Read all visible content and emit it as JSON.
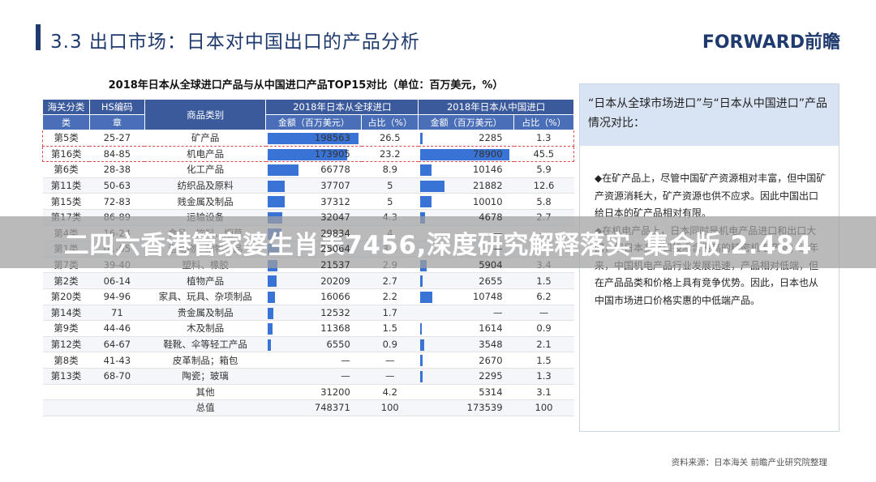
{
  "header": {
    "title": "3.3  出口市场：日本对中国出口的产品分析",
    "logo": "FORWARD前瞻"
  },
  "table": {
    "title": "2018年日本从全球进口产品与从中国进口产品TOP15对比（单位：百万美元，%）",
    "headers": {
      "customs": "海关分类",
      "customs2": "类",
      "hs": "HS编码",
      "hs2": "章",
      "category": "商品类别",
      "global_group": "2018年日本从全球进口",
      "china_group": "2018年日本从中国进口",
      "amount": "金额（百万美元）",
      "share": "占比（%）",
      "amount2": "金额（百万美元）",
      "share2": "占比（%）"
    },
    "rows": [
      {
        "cls": "第5类",
        "hs": "25-27",
        "cat": "矿产品",
        "g_amt": "198563",
        "g_share": "26.5",
        "c_amt": "2285",
        "c_share": "1.3"
      },
      {
        "cls": "第16类",
        "hs": "84-85",
        "cat": "机电产品",
        "g_amt": "173905",
        "g_share": "23.2",
        "c_amt": "78900",
        "c_share": "45.5"
      },
      {
        "cls": "第6类",
        "hs": "28-38",
        "cat": "化工产品",
        "g_amt": "66778",
        "g_share": "8.9",
        "c_amt": "10146",
        "c_share": "5.9"
      },
      {
        "cls": "第11类",
        "hs": "50-63",
        "cat": "纺织品及原料",
        "g_amt": "37707",
        "g_share": "5",
        "c_amt": "21882",
        "c_share": "12.6"
      },
      {
        "cls": "第15类",
        "hs": "72-83",
        "cat": "贱金属及制品",
        "g_amt": "37312",
        "g_share": "5",
        "c_amt": "10010",
        "c_share": "5.8"
      },
      {
        "cls": "第17类",
        "hs": "86-89",
        "cat": "运输设备",
        "g_amt": "32047",
        "g_share": "4.3",
        "c_amt": "4678",
        "c_share": "2.7"
      },
      {
        "cls": "第4类",
        "hs": "16-24",
        "cat": "食品、饮料、烟草",
        "g_amt": "29834",
        "g_share": "4",
        "c_amt": "—",
        "c_share": "—"
      },
      {
        "cls": "第1类",
        "hs": "01-05",
        "cat": "活动物；动物产品",
        "g_amt": "25064",
        "g_share": "3.4",
        "c_amt": "—",
        "c_share": "—"
      },
      {
        "cls": "第7类",
        "hs": "39-40",
        "cat": "塑料、橡胶",
        "g_amt": "21537",
        "g_share": "2.9",
        "c_amt": "5904",
        "c_share": "3.4"
      },
      {
        "cls": "第2类",
        "hs": "06-14",
        "cat": "植物产品",
        "g_amt": "20209",
        "g_share": "2.7",
        "c_amt": "2655",
        "c_share": "1.5"
      },
      {
        "cls": "第20类",
        "hs": "94-96",
        "cat": "家具、玩具、杂项制品",
        "g_amt": "16066",
        "g_share": "2.2",
        "c_amt": "10748",
        "c_share": "6.2"
      },
      {
        "cls": "第14类",
        "hs": "71",
        "cat": "贵金属及制品",
        "g_amt": "12532",
        "g_share": "1.7",
        "c_amt": "—",
        "c_share": "—"
      },
      {
        "cls": "第9类",
        "hs": "44-46",
        "cat": "木及制品",
        "g_amt": "11368",
        "g_share": "1.5",
        "c_amt": "1614",
        "c_share": "0.9"
      },
      {
        "cls": "第12类",
        "hs": "64-67",
        "cat": "鞋靴、伞等轻工产品",
        "g_amt": "6550",
        "g_share": "0.9",
        "c_amt": "3548",
        "c_share": "2.1"
      },
      {
        "cls": "第8类",
        "hs": "41-43",
        "cat": "皮革制品；箱包",
        "g_amt": "—",
        "g_share": "—",
        "c_amt": "2670",
        "c_share": "1.5"
      },
      {
        "cls": "第13类",
        "hs": "68-70",
        "cat": "陶瓷；玻璃",
        "g_amt": "—",
        "g_share": "—",
        "c_amt": "2295",
        "c_share": "1.3"
      },
      {
        "cls": "",
        "hs": "",
        "cat": "其他",
        "g_amt": "31200",
        "g_share": "4.2",
        "c_amt": "5314",
        "c_share": "3.1"
      },
      {
        "cls": "",
        "hs": "",
        "cat": "总值",
        "g_amt": "748371",
        "g_share": "100",
        "c_amt": "173539",
        "c_share": "100"
      }
    ]
  },
  "side": {
    "head": "“日本从全球市场进口”与“日本从中国进口”产品情况对比：",
    "p1": "◆在矿产品上，尽管中国矿产资源相对丰富，但中国矿产资源消耗大，矿产资源也供不应求。因此中国出口给日本的矿产品相对有限。",
    "p2": "◆在机电产品上，日本同时是机电产品进口和出口大国，但日本多出口技术含量高的精密机电产品；近年来，中国机电产品行业发展迅速，产品相对低端，但在产品品类和价格上具有竞争优势。因此，日本也从中国市场进口价格实惠的中低端产品。"
  },
  "source": "资料来源：日本海关  前瞻产业研究院整理",
  "overlay": "二四六香港管家婆生肖表7456,深度研究解释落实_集合版.2.484",
  "colors": {
    "accent": "#1f3a6e",
    "header": "#3b5a9c",
    "bar": "#3a73d6",
    "highlight": "#e24b4b"
  }
}
